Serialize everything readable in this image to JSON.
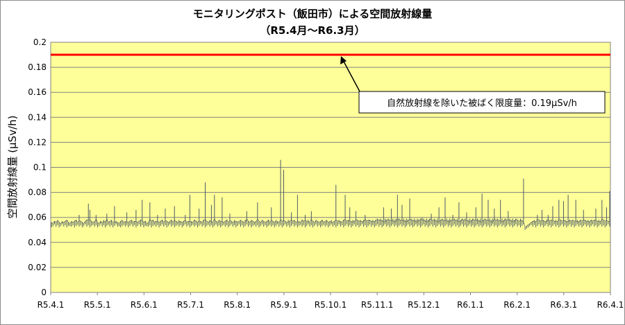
{
  "chart_data": {
    "type": "line",
    "title": "モニタリングポスト（飯田市）による空間放射線量",
    "subtitle": "（R5.4月～R6.3月）",
    "ylabel": "空間放射線量 (μSv/h)",
    "xlabel": "",
    "ylim": [
      0,
      0.2
    ],
    "yticks": [
      "0",
      "0.02",
      "0.04",
      "0.06",
      "0.08",
      "0.1",
      "0.12",
      "0.14",
      "0.16",
      "0.18",
      "0.2"
    ],
    "x_tick_labels": [
      "R5.4.1",
      "R5.5.1",
      "R5.6.1",
      "R5.7.1",
      "R5.8.1",
      "R5.9.1",
      "R5.10.1",
      "R5.11.1",
      "R5.12.1",
      "R6.1.1",
      "R6.2.1",
      "R6.3.1",
      "R6.4.1"
    ],
    "grid": true,
    "plot_background": "#ffff99",
    "limit_line": {
      "value": 0.19,
      "color": "#ff0000"
    },
    "annotation": {
      "text": "自然放射線を除いた被ばく限度量：0.19μSv/h",
      "points_to": 0.19
    },
    "series": [
      {
        "color": "#4d5a66",
        "note_values": "daily baseline ≈0.055–0.06 with occasional spikes",
        "values": [
          0.056,
          0.055,
          0.057,
          0.056,
          0.058,
          0.056,
          0.055,
          0.057,
          0.056,
          0.057,
          0.058,
          0.056,
          0.055,
          0.057,
          0.056,
          0.057,
          0.058,
          0.056,
          0.062,
          0.057,
          0.056,
          0.055,
          0.057,
          0.058,
          0.071,
          0.066,
          0.057,
          0.056,
          0.057,
          0.062,
          0.056,
          0.055,
          0.057,
          0.056,
          0.058,
          0.057,
          0.063,
          0.056,
          0.057,
          0.058,
          0.056,
          0.069,
          0.057,
          0.056,
          0.055,
          0.057,
          0.058,
          0.056,
          0.057,
          0.064,
          0.056,
          0.057,
          0.058,
          0.056,
          0.057,
          0.066,
          0.056,
          0.057,
          0.058,
          0.074,
          0.056,
          0.057,
          0.055,
          0.056,
          0.072,
          0.057,
          0.058,
          0.056,
          0.057,
          0.062,
          0.056,
          0.057,
          0.058,
          0.056,
          0.067,
          0.057,
          0.056,
          0.057,
          0.058,
          0.056,
          0.069,
          0.057,
          0.056,
          0.058,
          0.057,
          0.056,
          0.057,
          0.062,
          0.056,
          0.057,
          0.078,
          0.057,
          0.056,
          0.058,
          0.057,
          0.056,
          0.067,
          0.057,
          0.056,
          0.058,
          0.088,
          0.057,
          0.056,
          0.058,
          0.07,
          0.056,
          0.078,
          0.057,
          0.056,
          0.058,
          0.057,
          0.076,
          0.056,
          0.057,
          0.058,
          0.056,
          0.063,
          0.057,
          0.056,
          0.058,
          0.057,
          0.056,
          0.057,
          0.058,
          0.057,
          0.056,
          0.058,
          0.065,
          0.057,
          0.056,
          0.058,
          0.057,
          0.056,
          0.057,
          0.072,
          0.057,
          0.056,
          0.058,
          0.057,
          0.056,
          0.057,
          0.058,
          0.056,
          0.068,
          0.057,
          0.056,
          0.058,
          0.057,
          0.056,
          0.106,
          0.057,
          0.098,
          0.057,
          0.056,
          0.058,
          0.057,
          0.064,
          0.057,
          0.058,
          0.056,
          0.078,
          0.057,
          0.056,
          0.058,
          0.057,
          0.062,
          0.057,
          0.058,
          0.056,
          0.065,
          0.057,
          0.056,
          0.058,
          0.057,
          0.056,
          0.057,
          0.058,
          0.056,
          0.057,
          0.058,
          0.056,
          0.057,
          0.058,
          0.056,
          0.057,
          0.086,
          0.057,
          0.058,
          0.057,
          0.056,
          0.058,
          0.078,
          0.057,
          0.058,
          0.068,
          0.057,
          0.058,
          0.057,
          0.065,
          0.058,
          0.057,
          0.058,
          0.057,
          0.058,
          0.062,
          0.057,
          0.058,
          0.058,
          0.057,
          0.058,
          0.057,
          0.058,
          0.059,
          0.058,
          0.059,
          0.058,
          0.068,
          0.059,
          0.058,
          0.059,
          0.058,
          0.067,
          0.059,
          0.058,
          0.059,
          0.078,
          0.059,
          0.058,
          0.07,
          0.059,
          0.058,
          0.059,
          0.058,
          0.075,
          0.059,
          0.058,
          0.059,
          0.058,
          0.059,
          0.058,
          0.059,
          0.06,
          0.059,
          0.058,
          0.059,
          0.058,
          0.059,
          0.063,
          0.058,
          0.059,
          0.058,
          0.059,
          0.068,
          0.058,
          0.059,
          0.058,
          0.076,
          0.059,
          0.058,
          0.059,
          0.058,
          0.062,
          0.059,
          0.058,
          0.059,
          0.072,
          0.058,
          0.059,
          0.058,
          0.059,
          0.064,
          0.058,
          0.059,
          0.058,
          0.059,
          0.058,
          0.068,
          0.059,
          0.058,
          0.059,
          0.079,
          0.058,
          0.059,
          0.058,
          0.074,
          0.059,
          0.058,
          0.059,
          0.067,
          0.058,
          0.059,
          0.058,
          0.074,
          0.059,
          0.058,
          0.059,
          0.058,
          0.065,
          0.059,
          0.058,
          0.059,
          0.058,
          0.059,
          0.058,
          0.057,
          0.059,
          0.058,
          0.091,
          0.052,
          0.053,
          0.054,
          0.055,
          0.056,
          0.057,
          0.058,
          0.057,
          0.062,
          0.058,
          0.057,
          0.066,
          0.058,
          0.057,
          0.058,
          0.062,
          0.057,
          0.058,
          0.069,
          0.057,
          0.058,
          0.057,
          0.074,
          0.058,
          0.057,
          0.073,
          0.058,
          0.057,
          0.078,
          0.058,
          0.057,
          0.058,
          0.057,
          0.074,
          0.058,
          0.057,
          0.058,
          0.057,
          0.066,
          0.058,
          0.057,
          0.058,
          0.057,
          0.058,
          0.057,
          0.058,
          0.067,
          0.057,
          0.058,
          0.057,
          0.074,
          0.058,
          0.057,
          0.068,
          0.057,
          0.081
        ]
      }
    ]
  }
}
